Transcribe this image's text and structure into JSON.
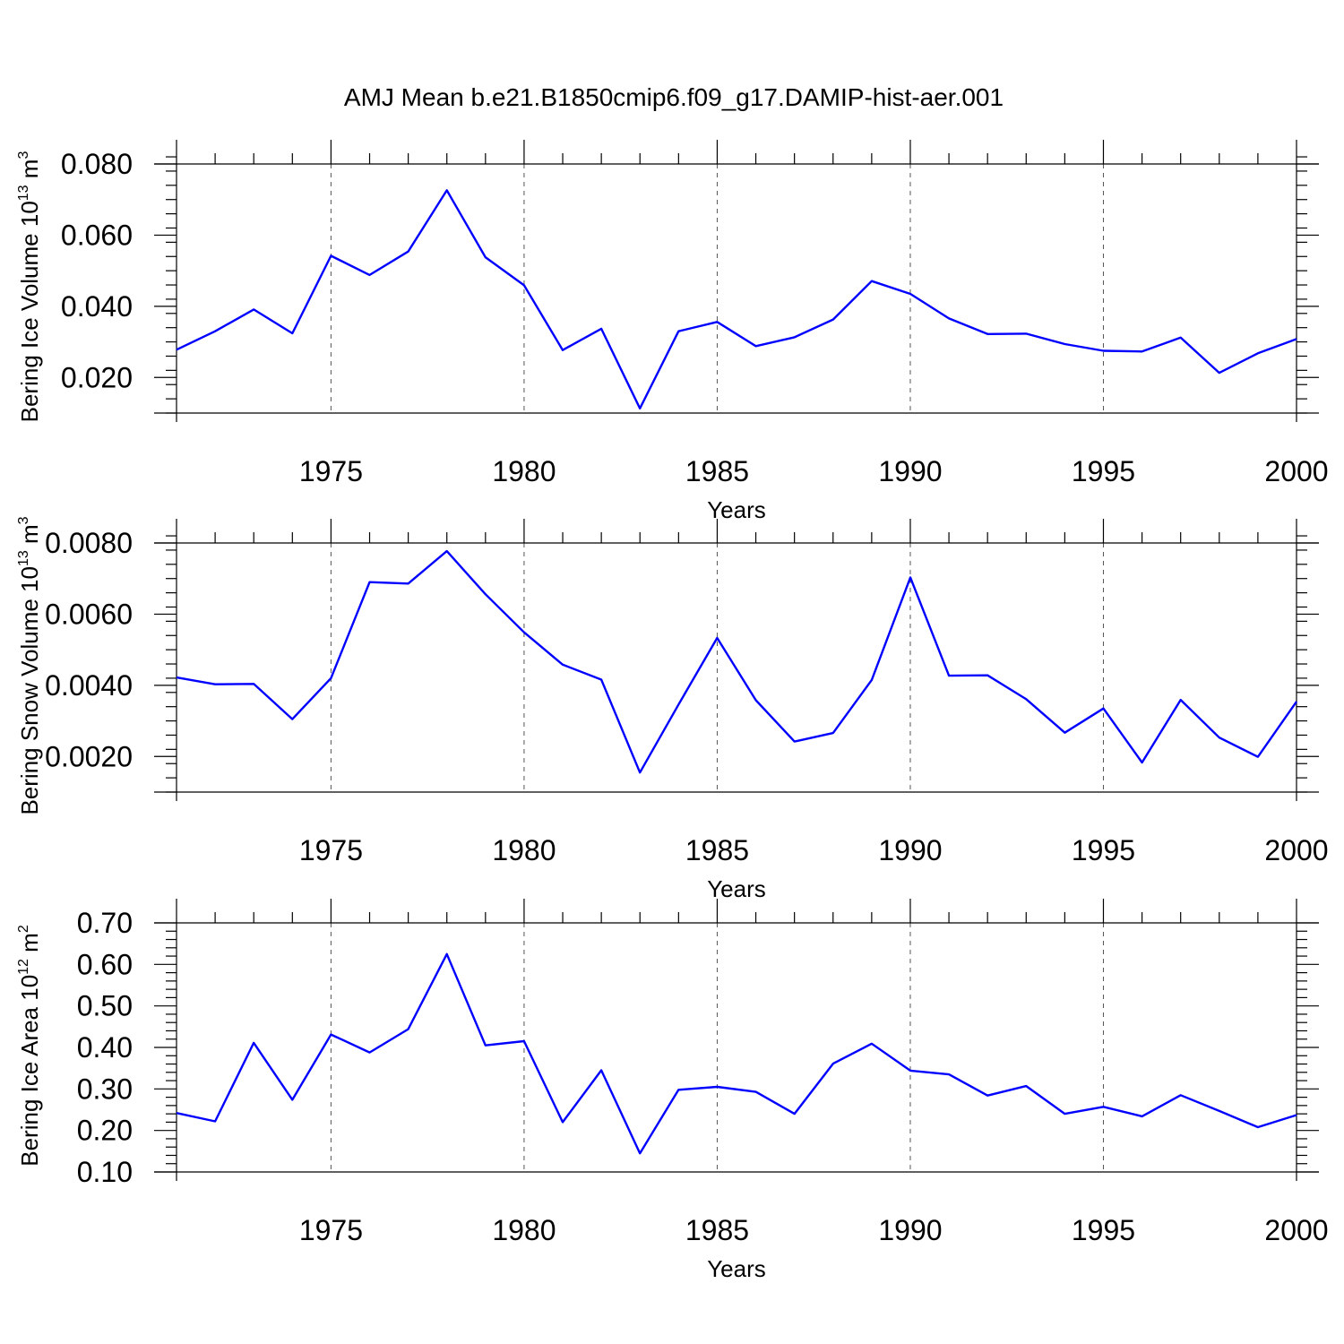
{
  "title": "AMJ Mean b.e21.B1850cmip6.f09_g17.DAMIP-hist-aer.001",
  "colors": {
    "line": "#0000ff",
    "axis": "#000000",
    "grid": "#555555"
  },
  "chart_data": [
    {
      "type": "line",
      "xlabel": "Years",
      "ylabel": {
        "main": "Bering Ice Volume 10",
        "sup": "13",
        "unit": " m",
        "unit_sup": "3"
      },
      "xlim": [
        1971,
        2000
      ],
      "ylim": [
        0.01,
        0.08
      ],
      "yticks": [
        0.02,
        0.04,
        0.06,
        0.08
      ],
      "ytick_labels": [
        "0.020",
        "0.040",
        "0.060",
        "0.080"
      ],
      "xticks": [
        1975,
        1980,
        1985,
        1990,
        1995,
        2000
      ],
      "xtick_labels": [
        "1975",
        "1980",
        "1985",
        "1990",
        "1995",
        "2000"
      ],
      "grid": "vertical dashed at major x ticks",
      "series": [
        {
          "x": [
            1971,
            1972,
            1973,
            1974,
            1975,
            1976,
            1977,
            1978,
            1979,
            1980,
            1981,
            1982,
            1983,
            1984,
            1985,
            1986,
            1987,
            1988,
            1989,
            1990,
            1991,
            1992,
            1993,
            1994,
            1995,
            1996,
            1997,
            1998,
            1999,
            2000
          ],
          "values": [
            0.0278,
            0.033,
            0.0391,
            0.0324,
            0.0542,
            0.0488,
            0.0554,
            0.0726,
            0.0538,
            0.0459,
            0.0277,
            0.0337,
            0.0113,
            0.033,
            0.0356,
            0.0288,
            0.0313,
            0.0363,
            0.0471,
            0.0435,
            0.0366,
            0.0322,
            0.0323,
            0.0294,
            0.0275,
            0.0273,
            0.0312,
            0.0213,
            0.0268,
            0.0308
          ]
        }
      ]
    },
    {
      "type": "line",
      "xlabel": "Years",
      "ylabel": {
        "main": "Bering Snow Volume 10",
        "sup": "13",
        "unit": " m",
        "unit_sup": "3"
      },
      "xlim": [
        1971,
        2000
      ],
      "ylim": [
        0.001,
        0.008
      ],
      "yticks": [
        0.002,
        0.004,
        0.006,
        0.008
      ],
      "ytick_labels": [
        "0.0020",
        "0.0040",
        "0.0060",
        "0.0080"
      ],
      "xticks": [
        1975,
        1980,
        1985,
        1990,
        1995,
        2000
      ],
      "xtick_labels": [
        "1975",
        "1980",
        "1985",
        "1990",
        "1995",
        "2000"
      ],
      "grid": "vertical dashed at major x ticks",
      "series": [
        {
          "x": [
            1971,
            1972,
            1973,
            1974,
            1975,
            1976,
            1977,
            1978,
            1979,
            1980,
            1981,
            1982,
            1983,
            1984,
            1985,
            1986,
            1987,
            1988,
            1989,
            1990,
            1991,
            1992,
            1993,
            1994,
            1995,
            1996,
            1997,
            1998,
            1999,
            2000
          ],
          "values": [
            0.00422,
            0.00403,
            0.00404,
            0.00305,
            0.0042,
            0.0069,
            0.00686,
            0.00777,
            0.00656,
            0.00549,
            0.00458,
            0.00416,
            0.00155,
            0.00346,
            0.00533,
            0.00358,
            0.00242,
            0.00266,
            0.00415,
            0.00703,
            0.00427,
            0.00428,
            0.00361,
            0.00267,
            0.00335,
            0.00183,
            0.00359,
            0.00253,
            0.00199,
            0.00354
          ]
        }
      ]
    },
    {
      "type": "line",
      "xlabel": "Years",
      "ylabel": {
        "main": "Bering Ice Area 10",
        "sup": "12",
        "unit": " m",
        "unit_sup": "2"
      },
      "xlim": [
        1971,
        2000
      ],
      "ylim": [
        0.1,
        0.7
      ],
      "yticks": [
        0.1,
        0.2,
        0.3,
        0.4,
        0.5,
        0.6,
        0.7
      ],
      "ytick_labels": [
        "0.10",
        "0.20",
        "0.30",
        "0.40",
        "0.50",
        "0.60",
        "0.70"
      ],
      "xticks": [
        1975,
        1980,
        1985,
        1990,
        1995,
        2000
      ],
      "xtick_labels": [
        "1975",
        "1980",
        "1985",
        "1990",
        "1995",
        "2000"
      ],
      "grid": "vertical dashed at major x ticks",
      "series": [
        {
          "x": [
            1971,
            1972,
            1973,
            1974,
            1975,
            1976,
            1977,
            1978,
            1979,
            1980,
            1981,
            1982,
            1983,
            1984,
            1985,
            1986,
            1987,
            1988,
            1989,
            1990,
            1991,
            1992,
            1993,
            1994,
            1995,
            1996,
            1997,
            1998,
            1999,
            2000
          ],
          "values": [
            0.242,
            0.222,
            0.411,
            0.274,
            0.431,
            0.388,
            0.444,
            0.625,
            0.405,
            0.415,
            0.22,
            0.345,
            0.145,
            0.298,
            0.305,
            0.293,
            0.24,
            0.361,
            0.409,
            0.344,
            0.335,
            0.284,
            0.307,
            0.24,
            0.257,
            0.234,
            0.285,
            0.247,
            0.208,
            0.237
          ]
        }
      ]
    }
  ]
}
